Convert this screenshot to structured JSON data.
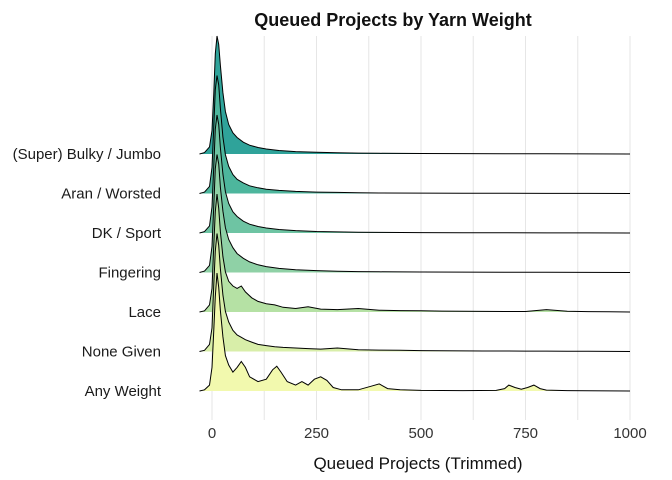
{
  "chart_data": {
    "type": "ridgeline",
    "title": "Queued Projects by Yarn Weight",
    "xlabel": "Queued Projects (Trimmed)",
    "ylabel": "",
    "xlim": [
      -25,
      1000
    ],
    "x_ticks": [
      0,
      250,
      500,
      750,
      1000
    ],
    "x_tick_labels": [
      "0",
      "250",
      "500",
      "750",
      "1000"
    ],
    "grid": "vertical",
    "legend": "none",
    "categories": [
      "(Super) Bulky / Jumbo",
      "Aran / Worsted",
      "DK / Sport",
      "Fingering",
      "Lace",
      "None Given",
      "Any Weight"
    ],
    "colors": [
      "#2fa39a",
      "#4db69d",
      "#6ec4a3",
      "#8fd1a6",
      "#b5e1a4",
      "#d8eea9",
      "#f2f9ae"
    ],
    "series": [
      {
        "x": [
          -30,
          -18,
          -6,
          0,
          4,
          8,
          12,
          16,
          20,
          26,
          32,
          40,
          50,
          60,
          75,
          90,
          110,
          130,
          160,
          200,
          250,
          300,
          350,
          400,
          500,
          600,
          700,
          800,
          900,
          1000
        ],
        "y": [
          0,
          0.012,
          0.06,
          0.2,
          0.5,
          0.85,
          1.0,
          0.93,
          0.75,
          0.52,
          0.36,
          0.25,
          0.18,
          0.14,
          0.1,
          0.075,
          0.055,
          0.042,
          0.03,
          0.02,
          0.014,
          0.01,
          0.008,
          0.006,
          0.004,
          0.003,
          0.002,
          0.002,
          0.001,
          0
        ]
      },
      {
        "x": [
          -30,
          -18,
          -6,
          0,
          4,
          8,
          12,
          16,
          20,
          26,
          32,
          40,
          50,
          60,
          75,
          90,
          110,
          130,
          160,
          200,
          250,
          300,
          350,
          400,
          500,
          600,
          700,
          800,
          900,
          1000
        ],
        "y": [
          0,
          0.012,
          0.06,
          0.22,
          0.55,
          0.88,
          1.0,
          0.92,
          0.72,
          0.48,
          0.33,
          0.23,
          0.16,
          0.12,
          0.09,
          0.065,
          0.048,
          0.036,
          0.026,
          0.018,
          0.012,
          0.009,
          0.006,
          0.004,
          0.003,
          0.002,
          0.002,
          0.001,
          0.001,
          0
        ]
      },
      {
        "x": [
          -30,
          -18,
          -6,
          0,
          4,
          8,
          12,
          16,
          20,
          26,
          32,
          40,
          50,
          60,
          75,
          90,
          110,
          130,
          160,
          200,
          250,
          300,
          350,
          400,
          500,
          600,
          700,
          800,
          900,
          1000
        ],
        "y": [
          0,
          0.012,
          0.06,
          0.22,
          0.55,
          0.88,
          1.0,
          0.92,
          0.72,
          0.5,
          0.35,
          0.25,
          0.18,
          0.14,
          0.1,
          0.075,
          0.055,
          0.042,
          0.03,
          0.02,
          0.013,
          0.009,
          0.007,
          0.005,
          0.003,
          0.002,
          0.002,
          0.001,
          0.001,
          0
        ]
      },
      {
        "x": [
          -30,
          -18,
          -6,
          0,
          4,
          8,
          12,
          16,
          20,
          26,
          32,
          40,
          50,
          60,
          75,
          90,
          110,
          130,
          160,
          200,
          250,
          300,
          350,
          400,
          500,
          600,
          700,
          800,
          900,
          1000
        ],
        "y": [
          0,
          0.012,
          0.06,
          0.22,
          0.55,
          0.88,
          1.0,
          0.92,
          0.72,
          0.52,
          0.38,
          0.28,
          0.21,
          0.16,
          0.12,
          0.09,
          0.065,
          0.05,
          0.035,
          0.024,
          0.016,
          0.011,
          0.008,
          0.006,
          0.004,
          0.003,
          0.002,
          0.002,
          0.001,
          0
        ]
      },
      {
        "x": [
          -30,
          -18,
          -6,
          0,
          4,
          8,
          12,
          16,
          20,
          26,
          32,
          40,
          50,
          60,
          70,
          80,
          95,
          110,
          130,
          150,
          170,
          200,
          230,
          260,
          300,
          350,
          400,
          450,
          500,
          550,
          600,
          650,
          700,
          750,
          800,
          850,
          900,
          950,
          1000
        ],
        "y": [
          0,
          0.01,
          0.06,
          0.2,
          0.55,
          0.85,
          1.0,
          0.88,
          0.68,
          0.47,
          0.34,
          0.26,
          0.22,
          0.2,
          0.22,
          0.17,
          0.12,
          0.09,
          0.07,
          0.06,
          0.04,
          0.03,
          0.045,
          0.025,
          0.02,
          0.03,
          0.015,
          0.012,
          0.01,
          0.008,
          0.006,
          0.005,
          0.004,
          0.004,
          0.02,
          0.006,
          0.003,
          0.002,
          0
        ]
      },
      {
        "x": [
          -30,
          -18,
          -6,
          0,
          4,
          8,
          12,
          16,
          20,
          26,
          32,
          40,
          50,
          60,
          70,
          80,
          95,
          110,
          130,
          150,
          170,
          200,
          230,
          260,
          300,
          350,
          400,
          450,
          500,
          550,
          600,
          650,
          700,
          750,
          800,
          850,
          900,
          950,
          1000
        ],
        "y": [
          0,
          0.01,
          0.06,
          0.2,
          0.55,
          0.85,
          1.0,
          0.9,
          0.7,
          0.48,
          0.34,
          0.25,
          0.18,
          0.14,
          0.12,
          0.1,
          0.08,
          0.06,
          0.05,
          0.04,
          0.035,
          0.03,
          0.025,
          0.02,
          0.03,
          0.015,
          0.012,
          0.01,
          0.008,
          0.006,
          0.005,
          0.004,
          0.004,
          0.003,
          0.003,
          0.002,
          0.002,
          0.001,
          0
        ]
      },
      {
        "x": [
          -30,
          -18,
          -6,
          0,
          4,
          8,
          12,
          16,
          20,
          26,
          32,
          40,
          50,
          60,
          70,
          80,
          90,
          110,
          130,
          145,
          155,
          165,
          180,
          200,
          215,
          230,
          245,
          260,
          275,
          290,
          310,
          350,
          380,
          400,
          420,
          450,
          500,
          600,
          680,
          700,
          710,
          725,
          740,
          755,
          770,
          785,
          800,
          850,
          900,
          950,
          1000
        ],
        "y": [
          0,
          0.01,
          0.05,
          0.2,
          0.5,
          0.8,
          1.0,
          0.88,
          0.68,
          0.46,
          0.3,
          0.22,
          0.16,
          0.2,
          0.25,
          0.2,
          0.12,
          0.08,
          0.1,
          0.18,
          0.21,
          0.16,
          0.08,
          0.05,
          0.08,
          0.05,
          0.1,
          0.12,
          0.09,
          0.03,
          0.01,
          0.01,
          0.04,
          0.06,
          0.02,
          0.01,
          0.005,
          0.003,
          0.005,
          0.02,
          0.05,
          0.03,
          0.015,
          0.03,
          0.05,
          0.02,
          0.008,
          0.003,
          0.002,
          0.001,
          0
        ]
      }
    ]
  }
}
